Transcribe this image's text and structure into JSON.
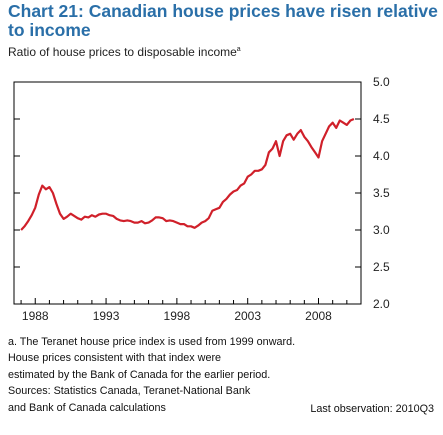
{
  "chart_data": {
    "type": "line",
    "title": "Chart 21: Canadian house prices have risen relative to income",
    "subtitle": "Ratio of house prices to disposable income",
    "subtitle_note_marker": "a",
    "xlabel": "",
    "ylabel": "",
    "xlim": [
      1986.5,
      2011.0
    ],
    "ylim": [
      2.0,
      5.0
    ],
    "y_axis_side": "right",
    "x_ticks": [
      1988,
      1993,
      1998,
      2003,
      2008
    ],
    "x_tick_labels": [
      "1988",
      "1993",
      "1998",
      "2003",
      "2008"
    ],
    "y_ticks": [
      2.0,
      2.5,
      3.0,
      3.5,
      4.0,
      4.5,
      5.0
    ],
    "y_tick_labels": [
      "2.0",
      "2.5",
      "3.0",
      "3.5",
      "4.0",
      "4.5",
      "5.0"
    ],
    "grid": false,
    "legend": "none",
    "color": "#d0202a",
    "series": [
      {
        "values_x": [
          1987.0,
          1987.25,
          1987.5,
          1987.75,
          1988.0,
          1988.25,
          1988.5,
          1988.75,
          1989.0,
          1989.25,
          1989.5,
          1989.75,
          1990.0,
          1990.25,
          1990.5,
          1990.75,
          1991.0,
          1991.25,
          1991.5,
          1991.75,
          1992.0,
          1992.25,
          1992.5,
          1992.75,
          1993.0,
          1993.25,
          1993.5,
          1993.75,
          1994.0,
          1994.25,
          1994.5,
          1994.75,
          1995.0,
          1995.25,
          1995.5,
          1995.75,
          1996.0,
          1996.25,
          1996.5,
          1996.75,
          1997.0,
          1997.25,
          1997.5,
          1997.75,
          1998.0,
          1998.25,
          1998.5,
          1998.75,
          1999.0,
          1999.25,
          1999.5,
          1999.75,
          2000.0,
          2000.25,
          2000.5,
          2000.75,
          2001.0,
          2001.25,
          2001.5,
          2001.75,
          2002.0,
          2002.25,
          2002.5,
          2002.75,
          2003.0,
          2003.25,
          2003.5,
          2003.75,
          2004.0,
          2004.25,
          2004.5,
          2004.75,
          2005.0,
          2005.25,
          2005.5,
          2005.75,
          2006.0,
          2006.25,
          2006.5,
          2006.75,
          2007.0,
          2007.25,
          2007.5,
          2007.75,
          2008.0,
          2008.25,
          2008.5,
          2008.75,
          2009.0,
          2009.25,
          2009.5,
          2009.75,
          2010.0,
          2010.25,
          2010.5
        ],
        "values": [
          3.0,
          3.05,
          3.12,
          3.2,
          3.3,
          3.48,
          3.6,
          3.55,
          3.58,
          3.5,
          3.35,
          3.22,
          3.15,
          3.18,
          3.22,
          3.19,
          3.16,
          3.14,
          3.18,
          3.17,
          3.2,
          3.18,
          3.21,
          3.22,
          3.22,
          3.2,
          3.19,
          3.15,
          3.13,
          3.12,
          3.13,
          3.12,
          3.1,
          3.1,
          3.12,
          3.09,
          3.1,
          3.13,
          3.17,
          3.17,
          3.16,
          3.12,
          3.13,
          3.12,
          3.1,
          3.08,
          3.08,
          3.05,
          3.05,
          3.03,
          3.06,
          3.1,
          3.12,
          3.16,
          3.26,
          3.28,
          3.3,
          3.38,
          3.42,
          3.48,
          3.52,
          3.54,
          3.6,
          3.63,
          3.72,
          3.75,
          3.8,
          3.8,
          3.82,
          3.88,
          4.05,
          4.1,
          4.2,
          4.0,
          4.2,
          4.28,
          4.3,
          4.22,
          4.3,
          4.35,
          4.26,
          4.2,
          4.12,
          4.05,
          3.98,
          4.2,
          4.3,
          4.4,
          4.45,
          4.38,
          4.48,
          4.45,
          4.42,
          4.48,
          4.5
        ]
      }
    ]
  },
  "notes": [
    "a. The Teranet house price index is used from 1999 onward.",
    "House prices consistent with that index were",
    "estimated by the Bank of Canada for the earlier period.",
    "Sources: Statistics Canada, Teranet-National Bank",
    "and Bank of Canada calculations"
  ],
  "last_observation": "Last observation: 2010Q3"
}
